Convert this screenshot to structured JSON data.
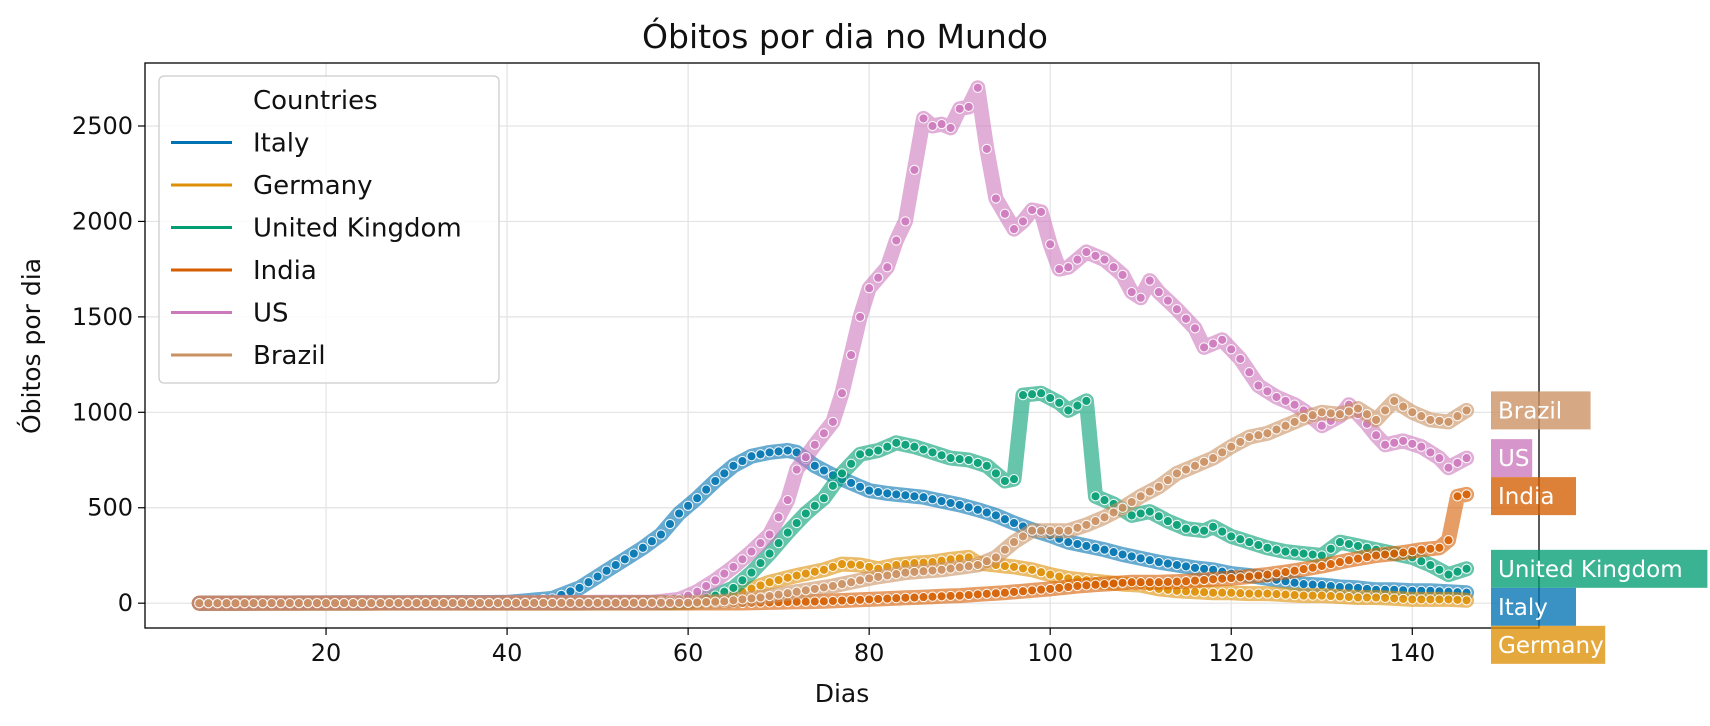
{
  "chart_data": {
    "type": "line",
    "title": "Óbitos por dia no Mundo",
    "xlabel": "Dias",
    "ylabel": "Óbitos por dia",
    "xlim": [
      0,
      154
    ],
    "ylim": [
      -130,
      2830
    ],
    "xticks": [
      20,
      40,
      60,
      80,
      100,
      120,
      140
    ],
    "yticks": [
      0,
      500,
      1000,
      1500,
      2000,
      2500
    ],
    "grid": true,
    "legend": {
      "title": "Countries",
      "placement": "top-left"
    },
    "x_start": 6,
    "x_end": 146,
    "series": [
      {
        "name": "Italy",
        "color": "#0173b2",
        "keypoints": [
          [
            6,
            0
          ],
          [
            40,
            4
          ],
          [
            45,
            25
          ],
          [
            48,
            80
          ],
          [
            50,
            140
          ],
          [
            52,
            200
          ],
          [
            55,
            290
          ],
          [
            57,
            360
          ],
          [
            59,
            470
          ],
          [
            61,
            550
          ],
          [
            63,
            640
          ],
          [
            65,
            720
          ],
          [
            67,
            770
          ],
          [
            69,
            790
          ],
          [
            71,
            800
          ],
          [
            72,
            790
          ],
          [
            74,
            720
          ],
          [
            76,
            670
          ],
          [
            78,
            630
          ],
          [
            80,
            590
          ],
          [
            82,
            575
          ],
          [
            84,
            565
          ],
          [
            86,
            555
          ],
          [
            88,
            535
          ],
          [
            90,
            515
          ],
          [
            92,
            490
          ],
          [
            94,
            460
          ],
          [
            96,
            420
          ],
          [
            98,
            385
          ],
          [
            100,
            355
          ],
          [
            102,
            320
          ],
          [
            104,
            300
          ],
          [
            106,
            280
          ],
          [
            108,
            255
          ],
          [
            110,
            235
          ],
          [
            112,
            215
          ],
          [
            114,
            200
          ],
          [
            116,
            185
          ],
          [
            118,
            175
          ],
          [
            120,
            155
          ],
          [
            122,
            145
          ],
          [
            124,
            130
          ],
          [
            126,
            115
          ],
          [
            128,
            100
          ],
          [
            130,
            95
          ],
          [
            132,
            85
          ],
          [
            134,
            80
          ],
          [
            136,
            70
          ],
          [
            138,
            70
          ],
          [
            140,
            65
          ],
          [
            142,
            65
          ],
          [
            144,
            60
          ],
          [
            146,
            55
          ]
        ]
      },
      {
        "name": "Germany",
        "color": "#de8f05",
        "keypoints": [
          [
            6,
            0
          ],
          [
            60,
            2
          ],
          [
            63,
            20
          ],
          [
            66,
            60
          ],
          [
            69,
            110
          ],
          [
            72,
            145
          ],
          [
            75,
            175
          ],
          [
            77,
            205
          ],
          [
            79,
            200
          ],
          [
            81,
            180
          ],
          [
            83,
            200
          ],
          [
            85,
            210
          ],
          [
            87,
            215
          ],
          [
            89,
            230
          ],
          [
            91,
            240
          ],
          [
            92,
            210
          ],
          [
            94,
            200
          ],
          [
            96,
            190
          ],
          [
            98,
            175
          ],
          [
            100,
            150
          ],
          [
            102,
            130
          ],
          [
            104,
            120
          ],
          [
            106,
            110
          ],
          [
            108,
            100
          ],
          [
            110,
            95
          ],
          [
            112,
            75
          ],
          [
            114,
            65
          ],
          [
            116,
            60
          ],
          [
            118,
            55
          ],
          [
            120,
            55
          ],
          [
            122,
            50
          ],
          [
            124,
            50
          ],
          [
            126,
            45
          ],
          [
            128,
            40
          ],
          [
            130,
            40
          ],
          [
            132,
            35
          ],
          [
            134,
            30
          ],
          [
            136,
            30
          ],
          [
            138,
            25
          ],
          [
            140,
            20
          ],
          [
            142,
            20
          ],
          [
            144,
            20
          ],
          [
            146,
            15
          ]
        ]
      },
      {
        "name": "United Kingdom",
        "color": "#029e73",
        "keypoints": [
          [
            6,
            0
          ],
          [
            58,
            2
          ],
          [
            61,
            15
          ],
          [
            63,
            40
          ],
          [
            65,
            80
          ],
          [
            67,
            160
          ],
          [
            69,
            260
          ],
          [
            71,
            370
          ],
          [
            73,
            470
          ],
          [
            75,
            550
          ],
          [
            77,
            680
          ],
          [
            79,
            780
          ],
          [
            81,
            800
          ],
          [
            83,
            840
          ],
          [
            85,
            820
          ],
          [
            87,
            790
          ],
          [
            89,
            760
          ],
          [
            91,
            750
          ],
          [
            93,
            720
          ],
          [
            95,
            640
          ],
          [
            96,
            650
          ],
          [
            97,
            1090
          ],
          [
            99,
            1100
          ],
          [
            101,
            1050
          ],
          [
            102,
            1010
          ],
          [
            104,
            1060
          ],
          [
            105,
            560
          ],
          [
            107,
            520
          ],
          [
            109,
            460
          ],
          [
            111,
            480
          ],
          [
            113,
            430
          ],
          [
            115,
            390
          ],
          [
            117,
            380
          ],
          [
            118,
            400
          ],
          [
            120,
            350
          ],
          [
            122,
            320
          ],
          [
            124,
            290
          ],
          [
            126,
            270
          ],
          [
            128,
            260
          ],
          [
            130,
            250
          ],
          [
            132,
            320
          ],
          [
            134,
            300
          ],
          [
            136,
            280
          ],
          [
            138,
            260
          ],
          [
            140,
            240
          ],
          [
            142,
            200
          ],
          [
            144,
            150
          ],
          [
            146,
            180
          ]
        ]
      },
      {
        "name": "India",
        "color": "#d55e00",
        "keypoints": [
          [
            6,
            0
          ],
          [
            66,
            1
          ],
          [
            70,
            5
          ],
          [
            75,
            10
          ],
          [
            80,
            20
          ],
          [
            85,
            30
          ],
          [
            90,
            40
          ],
          [
            95,
            55
          ],
          [
            100,
            75
          ],
          [
            103,
            90
          ],
          [
            106,
            100
          ],
          [
            109,
            110
          ],
          [
            112,
            110
          ],
          [
            115,
            115
          ],
          [
            118,
            125
          ],
          [
            121,
            135
          ],
          [
            124,
            150
          ],
          [
            127,
            170
          ],
          [
            130,
            195
          ],
          [
            133,
            225
          ],
          [
            136,
            250
          ],
          [
            139,
            265
          ],
          [
            141,
            280
          ],
          [
            143,
            290
          ],
          [
            144,
            330
          ],
          [
            145,
            560
          ],
          [
            146,
            570
          ]
        ]
      },
      {
        "name": "US",
        "color": "#cc78bc",
        "keypoints": [
          [
            6,
            0
          ],
          [
            56,
            5
          ],
          [
            59,
            20
          ],
          [
            61,
            60
          ],
          [
            63,
            120
          ],
          [
            65,
            190
          ],
          [
            67,
            270
          ],
          [
            69,
            360
          ],
          [
            70,
            450
          ],
          [
            71,
            540
          ],
          [
            72,
            700
          ],
          [
            74,
            830
          ],
          [
            76,
            950
          ],
          [
            77,
            1100
          ],
          [
            78,
            1300
          ],
          [
            79,
            1500
          ],
          [
            80,
            1650
          ],
          [
            82,
            1760
          ],
          [
            83,
            1900
          ],
          [
            84,
            2000
          ],
          [
            85,
            2270
          ],
          [
            86,
            2540
          ],
          [
            87,
            2500
          ],
          [
            88,
            2510
          ],
          [
            89,
            2490
          ],
          [
            90,
            2590
          ],
          [
            91,
            2600
          ],
          [
            92,
            2700
          ],
          [
            93,
            2380
          ],
          [
            94,
            2120
          ],
          [
            96,
            1960
          ],
          [
            97,
            2000
          ],
          [
            98,
            2060
          ],
          [
            99,
            2050
          ],
          [
            100,
            1880
          ],
          [
            101,
            1750
          ],
          [
            102,
            1760
          ],
          [
            104,
            1840
          ],
          [
            106,
            1800
          ],
          [
            108,
            1720
          ],
          [
            109,
            1630
          ],
          [
            110,
            1600
          ],
          [
            111,
            1690
          ],
          [
            112,
            1630
          ],
          [
            114,
            1540
          ],
          [
            116,
            1440
          ],
          [
            117,
            1340
          ],
          [
            119,
            1380
          ],
          [
            121,
            1280
          ],
          [
            123,
            1140
          ],
          [
            125,
            1080
          ],
          [
            127,
            1040
          ],
          [
            128,
            1010
          ],
          [
            130,
            930
          ],
          [
            132,
            980
          ],
          [
            133,
            1040
          ],
          [
            135,
            940
          ],
          [
            136,
            880
          ],
          [
            137,
            830
          ],
          [
            139,
            850
          ],
          [
            141,
            820
          ],
          [
            143,
            760
          ],
          [
            144,
            710
          ],
          [
            146,
            760
          ]
        ]
      },
      {
        "name": "Brazil",
        "color": "#ca9161",
        "keypoints": [
          [
            6,
            0
          ],
          [
            60,
            2
          ],
          [
            64,
            10
          ],
          [
            68,
            30
          ],
          [
            72,
            60
          ],
          [
            76,
            90
          ],
          [
            80,
            130
          ],
          [
            84,
            160
          ],
          [
            88,
            175
          ],
          [
            92,
            200
          ],
          [
            94,
            240
          ],
          [
            96,
            320
          ],
          [
            98,
            380
          ],
          [
            100,
            380
          ],
          [
            102,
            380
          ],
          [
            104,
            410
          ],
          [
            106,
            450
          ],
          [
            108,
            500
          ],
          [
            110,
            560
          ],
          [
            112,
            610
          ],
          [
            114,
            680
          ],
          [
            116,
            720
          ],
          [
            118,
            760
          ],
          [
            120,
            820
          ],
          [
            122,
            870
          ],
          [
            124,
            890
          ],
          [
            126,
            930
          ],
          [
            128,
            970
          ],
          [
            130,
            1000
          ],
          [
            132,
            990
          ],
          [
            134,
            1020
          ],
          [
            136,
            960
          ],
          [
            138,
            1060
          ],
          [
            140,
            1000
          ],
          [
            142,
            960
          ],
          [
            144,
            950
          ],
          [
            146,
            1010
          ]
        ]
      }
    ],
    "end_labels": [
      {
        "series": "Brazil",
        "text": "Brazil"
      },
      {
        "series": "US",
        "text": "US"
      },
      {
        "series": "India",
        "text": "India"
      },
      {
        "series": "United Kingdom",
        "text": "United Kingdom"
      },
      {
        "series": "Italy",
        "text": "Italy"
      },
      {
        "series": "Germany",
        "text": "Germany"
      }
    ]
  }
}
